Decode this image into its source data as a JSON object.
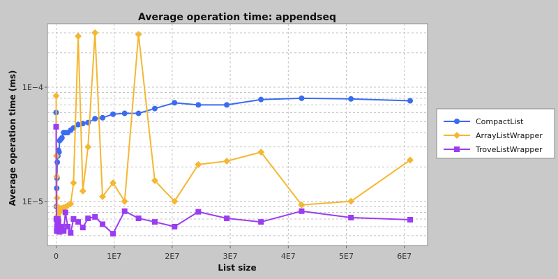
{
  "colors": {
    "background": "#c9c9c9",
    "plot_background": "#ffffff",
    "grid": "#c0c0c0",
    "compact": "#3a6cf0",
    "arraylist": "#f5b731",
    "trove": "#9b3cf2"
  },
  "chart_data": {
    "type": "line",
    "title": "Average operation time: appendseq",
    "xlabel": "List size",
    "ylabel": "Average operation time (ms)",
    "y_scale": "log",
    "xlim": [
      -1500000,
      64000000
    ],
    "ylim": [
      4.1e-06,
      0.00036
    ],
    "x_ticks": [
      {
        "value": 0,
        "label": "0"
      },
      {
        "value": 10000000,
        "label": "1E7"
      },
      {
        "value": 20000000,
        "label": "2E7"
      },
      {
        "value": 30000000,
        "label": "3E7"
      },
      {
        "value": 40000000,
        "label": "4E7"
      },
      {
        "value": 50000000,
        "label": "5E7"
      },
      {
        "value": 60000000,
        "label": "6E7"
      }
    ],
    "y_ticks": [
      {
        "value": 1e-05,
        "label": "1E−5"
      },
      {
        "value": 0.0001,
        "label": "1E−4"
      }
    ],
    "grid": true,
    "legend_position": "right",
    "series": [
      {
        "name": "CompactList",
        "marker": "circle",
        "color": "#3a6cf0",
        "x": [
          0,
          50000,
          100000,
          150000,
          200000,
          300000,
          400000,
          500000,
          600000,
          800000,
          1000000,
          1300000,
          1600000,
          2000000,
          2500000,
          3000000,
          3800000,
          4600000,
          5500000,
          6700000,
          8000000,
          9800000,
          11800000,
          14200000,
          17000000,
          20400000,
          24500000,
          29400000,
          35300000,
          42300000,
          50800000,
          61000000
        ],
        "y": [
          6e-05,
          9e-06,
          1.3e-05,
          1.6e-05,
          2.2e-05,
          2.5e-05,
          2.8e-05,
          2.7e-05,
          3.4e-05,
          3.5e-05,
          3.6e-05,
          4e-05,
          4e-05,
          4e-05,
          4.2e-05,
          4.4e-05,
          4.7e-05,
          4.8e-05,
          4.9e-05,
          5.3e-05,
          5.4e-05,
          5.8e-05,
          5.9e-05,
          5.9e-05,
          6.5e-05,
          7.3e-05,
          7e-05,
          7e-05,
          7.8e-05,
          8e-05,
          7.9e-05,
          7.6e-05
        ]
      },
      {
        "name": "ArrayListWrapper",
        "marker": "diamond",
        "color": "#f5b731",
        "x": [
          0,
          50000,
          100000,
          150000,
          200000,
          300000,
          400000,
          500000,
          600000,
          800000,
          1000000,
          1300000,
          1600000,
          2000000,
          2500000,
          3000000,
          3800000,
          4600000,
          5500000,
          6700000,
          8000000,
          9800000,
          11800000,
          14200000,
          17000000,
          20400000,
          24500000,
          29400000,
          35300000,
          42300000,
          50800000,
          61000000
        ],
        "y": [
          8.4e-05,
          2.5e-05,
          1.65e-05,
          1.07e-05,
          9e-06,
          7.5e-06,
          8.2e-06,
          8.8e-06,
          8e-06,
          8.5e-06,
          8.7e-06,
          8.8e-06,
          8.9e-06,
          9.2e-06,
          9.5e-06,
          1.45e-05,
          0.00028,
          1.23e-05,
          3e-05,
          0.0003,
          1.1e-05,
          1.45e-05,
          1e-05,
          0.00029,
          1.52e-05,
          1e-05,
          2.1e-05,
          2.25e-05,
          2.7e-05,
          9.3e-06,
          1e-05,
          2.3e-05
        ]
      },
      {
        "name": "TroveListWrapper",
        "marker": "square",
        "color": "#9b3cf2",
        "x": [
          0,
          50000,
          100000,
          150000,
          200000,
          300000,
          400000,
          500000,
          600000,
          800000,
          1000000,
          1300000,
          1600000,
          2000000,
          2500000,
          3000000,
          3800000,
          4600000,
          5500000,
          6700000,
          8000000,
          9800000,
          11800000,
          14200000,
          17000000,
          20400000,
          24500000,
          29400000,
          35300000,
          42300000,
          50800000,
          61000000
        ],
        "y": [
          4.5e-05,
          7e-06,
          5.5e-06,
          6e-06,
          6.3e-06,
          7e-06,
          6.6e-06,
          5.8e-06,
          5.4e-06,
          6e-06,
          5.6e-06,
          5.5e-06,
          8e-06,
          6e-06,
          5.3e-06,
          7e-06,
          6.6e-06,
          5.9e-06,
          7.1e-06,
          7.3e-06,
          6.3e-06,
          5.2e-06,
          8.2e-06,
          7.1e-06,
          6.6e-06,
          6e-06,
          8.1e-06,
          7.1e-06,
          6.6e-06,
          8.2e-06,
          7.2e-06,
          6.9e-06
        ]
      }
    ]
  }
}
